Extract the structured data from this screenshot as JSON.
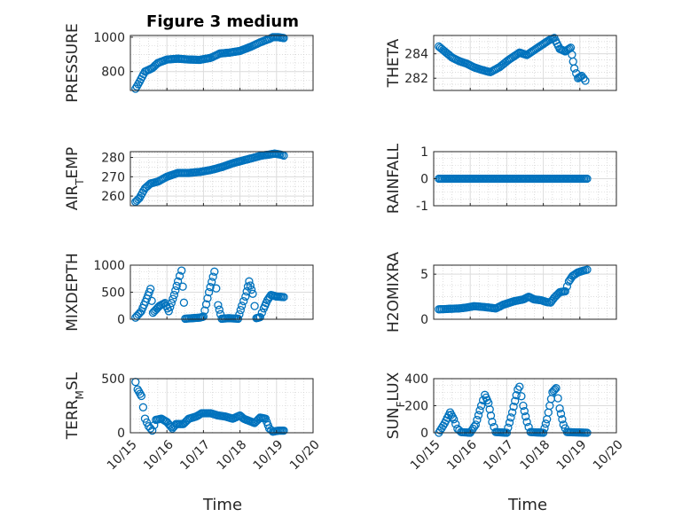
{
  "figure": {
    "title": "Figure 3 medium",
    "x_tick_labels": [
      "10/15",
      "10/16",
      "10/17",
      "10/18",
      "10/19",
      "10/20"
    ],
    "x_label": "Time",
    "marker_color": "#0072BD",
    "grid": "dotted minor + major"
  },
  "chart_data": [
    {
      "type": "scatter",
      "ylabel": "PRESSURE",
      "title": "Figure 3 medium",
      "xlim": [
        15.0,
        20.0
      ],
      "ylim": [
        690,
        1010
      ],
      "yticks": [
        800,
        1000
      ],
      "ytick_labels": [
        "800",
        "1000"
      ],
      "anchors": [
        [
          15.14,
          700
        ],
        [
          15.25,
          740
        ],
        [
          15.4,
          800
        ],
        [
          15.6,
          820
        ],
        [
          15.75,
          850
        ],
        [
          16.0,
          870
        ],
        [
          16.3,
          875
        ],
        [
          16.6,
          870
        ],
        [
          16.9,
          868
        ],
        [
          17.2,
          880
        ],
        [
          17.45,
          905
        ],
        [
          17.7,
          910
        ],
        [
          18.0,
          920
        ],
        [
          18.3,
          945
        ],
        [
          18.55,
          970
        ],
        [
          18.8,
          990
        ],
        [
          18.9,
          1000
        ],
        [
          19.05,
          1000
        ],
        [
          19.2,
          995
        ]
      ]
    },
    {
      "type": "scatter",
      "ylabel": "THETA",
      "xlim": [
        15.0,
        20.0
      ],
      "ylim": [
        281.0,
        285.5
      ],
      "yticks": [
        282,
        284
      ],
      "ytick_labels": [
        "282",
        "284"
      ],
      "anchors": [
        [
          15.14,
          284.6
        ],
        [
          15.3,
          284.2
        ],
        [
          15.5,
          283.7
        ],
        [
          15.7,
          283.4
        ],
        [
          15.9,
          283.2
        ],
        [
          16.1,
          282.9
        ],
        [
          16.3,
          282.7
        ],
        [
          16.55,
          282.5
        ],
        [
          16.8,
          282.9
        ],
        [
          17.05,
          283.5
        ],
        [
          17.35,
          284.1
        ],
        [
          17.55,
          283.9
        ],
        [
          17.75,
          284.3
        ],
        [
          17.95,
          284.7
        ],
        [
          18.15,
          285.1
        ],
        [
          18.3,
          285.3
        ],
        [
          18.45,
          284.4
        ],
        [
          18.6,
          284.2
        ],
        [
          18.75,
          284.5
        ],
        [
          18.85,
          282.8
        ],
        [
          18.95,
          282.0
        ],
        [
          19.05,
          282.2
        ],
        [
          19.15,
          281.8
        ]
      ]
    },
    {
      "type": "scatter",
      "ylabel": "AIR_TEMP",
      "xlim": [
        15.0,
        20.0
      ],
      "ylim": [
        255,
        283
      ],
      "yticks": [
        260,
        270,
        280
      ],
      "ytick_labels": [
        "260",
        "270",
        "280"
      ],
      "anchors": [
        [
          15.14,
          257
        ],
        [
          15.25,
          259
        ],
        [
          15.4,
          264
        ],
        [
          15.55,
          266.5
        ],
        [
          15.75,
          267.5
        ],
        [
          16.0,
          270
        ],
        [
          16.3,
          272
        ],
        [
          16.6,
          272
        ],
        [
          16.9,
          272.5
        ],
        [
          17.2,
          273.5
        ],
        [
          17.5,
          275
        ],
        [
          17.8,
          277
        ],
        [
          18.1,
          278.5
        ],
        [
          18.4,
          280
        ],
        [
          18.6,
          281
        ],
        [
          18.8,
          281.5
        ],
        [
          18.95,
          282
        ],
        [
          19.1,
          281.5
        ],
        [
          19.2,
          281
        ]
      ]
    },
    {
      "type": "scatter",
      "ylabel": "RAINFALL",
      "xlim": [
        15.0,
        20.0
      ],
      "ylim": [
        -1,
        1
      ],
      "yticks": [
        -1,
        0,
        1
      ],
      "ytick_labels": [
        "-1",
        "0",
        "1"
      ],
      "anchors": [
        [
          15.14,
          0
        ],
        [
          19.2,
          0
        ]
      ]
    },
    {
      "type": "scatter",
      "ylabel": "MIXDEPTH",
      "xlim": [
        15.0,
        20.0
      ],
      "ylim": [
        0,
        1000
      ],
      "yticks": [
        0,
        500,
        1000
      ],
      "ytick_labels": [
        "0",
        "500",
        "1000"
      ],
      "anchors": [
        [
          15.14,
          30
        ],
        [
          15.3,
          150
        ],
        [
          15.45,
          380
        ],
        [
          15.55,
          560
        ],
        [
          15.62,
          120
        ],
        [
          15.8,
          250
        ],
        [
          15.95,
          300
        ],
        [
          16.05,
          150
        ],
        [
          16.2,
          450
        ],
        [
          16.3,
          700
        ],
        [
          16.4,
          900
        ],
        [
          16.5,
          10
        ],
        [
          16.7,
          20
        ],
        [
          16.9,
          30
        ],
        [
          17.0,
          50
        ],
        [
          17.15,
          500
        ],
        [
          17.3,
          880
        ],
        [
          17.4,
          260
        ],
        [
          17.5,
          10
        ],
        [
          17.7,
          20
        ],
        [
          17.95,
          10
        ],
        [
          18.05,
          250
        ],
        [
          18.15,
          420
        ],
        [
          18.25,
          700
        ],
        [
          18.35,
          470
        ],
        [
          18.45,
          20
        ],
        [
          18.55,
          40
        ],
        [
          18.65,
          200
        ],
        [
          18.75,
          350
        ],
        [
          18.85,
          450
        ],
        [
          19.0,
          420
        ],
        [
          19.2,
          410
        ]
      ]
    },
    {
      "type": "scatter",
      "ylabel": "H2OMIXRA",
      "xlim": [
        15.0,
        20.0
      ],
      "ylim": [
        0,
        6
      ],
      "yticks": [
        0,
        5
      ],
      "ytick_labels": [
        "0",
        "5"
      ],
      "anchors": [
        [
          15.14,
          1.1
        ],
        [
          15.4,
          1.15
        ],
        [
          15.7,
          1.2
        ],
        [
          15.9,
          1.3
        ],
        [
          16.1,
          1.45
        ],
        [
          16.4,
          1.35
        ],
        [
          16.7,
          1.2
        ],
        [
          16.9,
          1.6
        ],
        [
          17.2,
          2.0
        ],
        [
          17.45,
          2.2
        ],
        [
          17.6,
          2.5
        ],
        [
          17.75,
          2.2
        ],
        [
          17.95,
          2.1
        ],
        [
          18.1,
          1.9
        ],
        [
          18.2,
          1.85
        ],
        [
          18.3,
          2.4
        ],
        [
          18.45,
          3.0
        ],
        [
          18.6,
          3.1
        ],
        [
          18.7,
          4.2
        ],
        [
          18.8,
          4.8
        ],
        [
          18.95,
          5.2
        ],
        [
          19.1,
          5.4
        ],
        [
          19.2,
          5.5
        ]
      ]
    },
    {
      "type": "scatter",
      "ylabel": "TERR_MSL",
      "xlim": [
        15.0,
        20.0
      ],
      "ylim": [
        0,
        500
      ],
      "yticks": [
        0,
        500
      ],
      "ytick_labels": [
        "0",
        "500"
      ],
      "anchors": [
        [
          15.14,
          470
        ],
        [
          15.2,
          400
        ],
        [
          15.3,
          340
        ],
        [
          15.4,
          130
        ],
        [
          15.5,
          60
        ],
        [
          15.6,
          20
        ],
        [
          15.7,
          120
        ],
        [
          15.85,
          130
        ],
        [
          16.0,
          100
        ],
        [
          16.15,
          40
        ],
        [
          16.25,
          80
        ],
        [
          16.45,
          80
        ],
        [
          16.6,
          130
        ],
        [
          16.8,
          150
        ],
        [
          16.95,
          180
        ],
        [
          17.2,
          180
        ],
        [
          17.4,
          160
        ],
        [
          17.6,
          150
        ],
        [
          17.8,
          130
        ],
        [
          18.0,
          160
        ],
        [
          18.1,
          130
        ],
        [
          18.25,
          110
        ],
        [
          18.4,
          90
        ],
        [
          18.55,
          140
        ],
        [
          18.7,
          130
        ],
        [
          18.8,
          40
        ],
        [
          18.9,
          10
        ],
        [
          19.05,
          20
        ],
        [
          19.2,
          20
        ]
      ]
    },
    {
      "type": "scatter",
      "ylabel": "SUN_FLUX",
      "xlim": [
        15.0,
        20.0
      ],
      "ylim": [
        0,
        400
      ],
      "yticks": [
        0,
        200,
        400
      ],
      "ytick_labels": [
        "0",
        "200",
        "400"
      ],
      "anchors": [
        [
          15.14,
          0
        ],
        [
          15.3,
          70
        ],
        [
          15.45,
          150
        ],
        [
          15.55,
          100
        ],
        [
          15.65,
          30
        ],
        [
          15.75,
          5
        ],
        [
          16.0,
          0
        ],
        [
          16.15,
          60
        ],
        [
          16.3,
          200
        ],
        [
          16.4,
          280
        ],
        [
          16.5,
          220
        ],
        [
          16.6,
          80
        ],
        [
          16.7,
          5
        ],
        [
          17.0,
          0
        ],
        [
          17.15,
          150
        ],
        [
          17.3,
          320
        ],
        [
          17.35,
          340
        ],
        [
          17.45,
          200
        ],
        [
          17.55,
          80
        ],
        [
          17.65,
          5
        ],
        [
          18.0,
          0
        ],
        [
          18.1,
          100
        ],
        [
          18.25,
          300
        ],
        [
          18.35,
          330
        ],
        [
          18.45,
          180
        ],
        [
          18.55,
          60
        ],
        [
          18.65,
          5
        ],
        [
          19.2,
          0
        ]
      ]
    }
  ]
}
